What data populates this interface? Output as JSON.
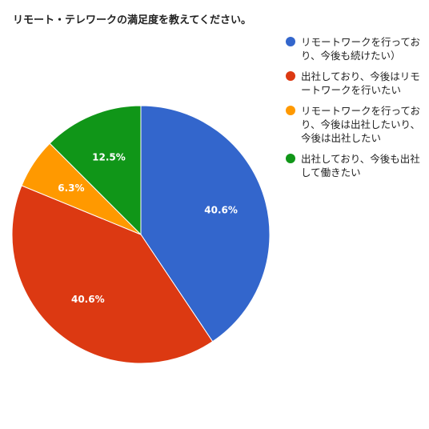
{
  "chart_data": {
    "type": "pie",
    "title": "リモート・テレワークの満足度を教えてください。",
    "legend_position": "right",
    "slices": [
      {
        "label": "リモートワークを行っており、今後も続けたい）",
        "value": 40.6,
        "display": "40.6%",
        "color": "#3366cc"
      },
      {
        "label": "出社しており、今後はリモートワークを行いたい",
        "value": 40.6,
        "display": "40.6%",
        "color": "#dc3912"
      },
      {
        "label": "リモートワークを行っており、今後は出社したいり、今後は出社したい",
        "value": 6.3,
        "display": "6.3%",
        "color": "#ff9900"
      },
      {
        "label": "出社しており、今後も出社して働きたい",
        "value": 12.5,
        "display": "12.5%",
        "color": "#109618"
      }
    ]
  }
}
